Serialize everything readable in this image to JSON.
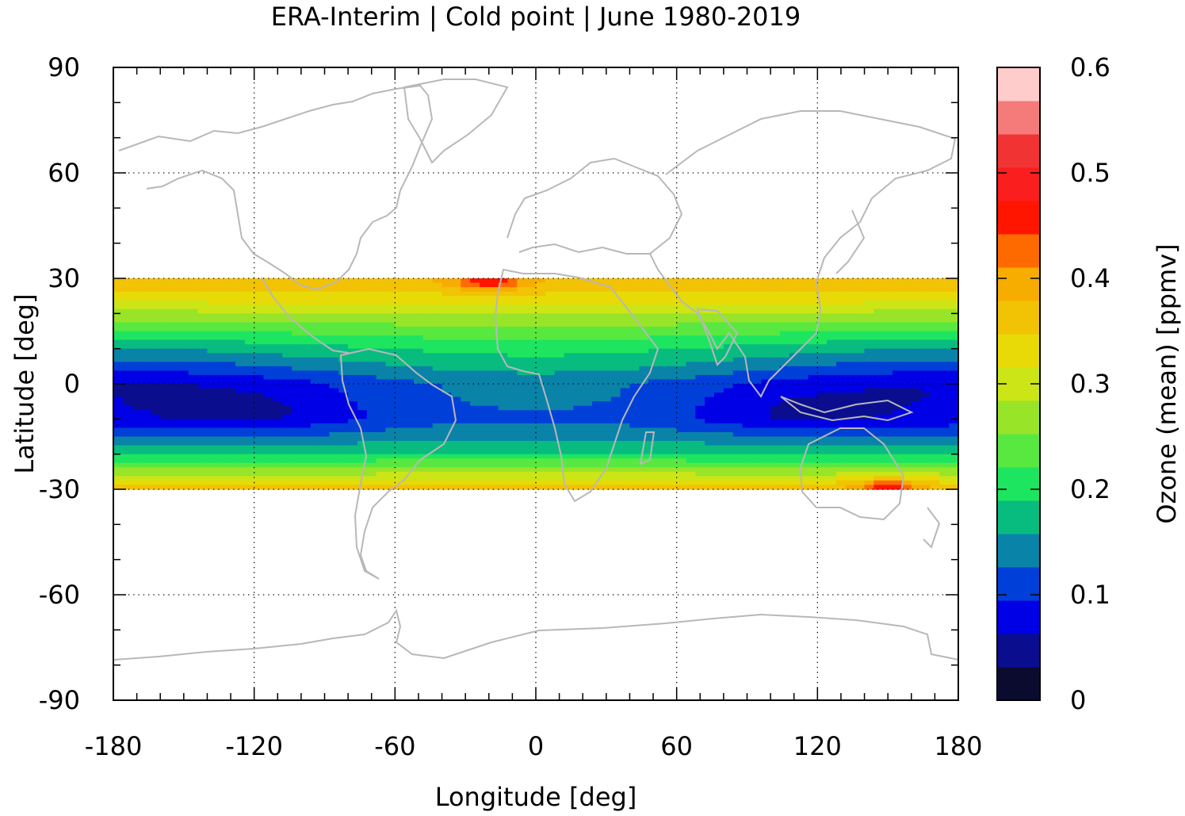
{
  "chart_data": {
    "type": "heatmap",
    "title": "ERA-Interim | Cold point | June 1980-2019",
    "xlabel": "Longitude [deg]",
    "ylabel": "Latitude [deg]",
    "xlim": [
      -180,
      180
    ],
    "ylim": [
      -90,
      90
    ],
    "data_lat_range": [
      -30,
      30
    ],
    "xticks": [
      -180,
      -120,
      -60,
      0,
      60,
      120,
      180
    ],
    "yticks": [
      90,
      60,
      30,
      0,
      -30,
      -60,
      -90
    ],
    "xtick_labels": [
      "-180",
      "-120",
      "-60",
      "0",
      "60",
      "120",
      "180"
    ],
    "ytick_labels": [
      "90",
      "60",
      "30",
      "0",
      "-30",
      "-60",
      "-90"
    ],
    "grid": true,
    "colorbar": {
      "label": "Ozone (mean) [ppmv]",
      "range": [
        0,
        0.6
      ],
      "ticks": [
        0.6,
        0.5,
        0.4,
        0.3,
        0.2,
        0.1,
        0
      ],
      "tick_labels": [
        "0.6",
        "0.5",
        "0.4",
        "0.3",
        "0.2",
        "0.1",
        "0"
      ],
      "colors": [
        "#0b0b30",
        "#0a0e8e",
        "#0000e6",
        "#0040d8",
        "#0a83a8",
        "#08bc80",
        "#1ee560",
        "#59e840",
        "#98e428",
        "#cce516",
        "#e8da06",
        "#f2c205",
        "#f7ad00",
        "#ff6a00",
        "#ff1500",
        "#fa1e1e",
        "#f23333",
        "#f57b7b",
        "#ffcccc"
      ]
    },
    "field": {
      "latitudes": [
        30,
        25,
        20,
        15,
        10,
        5,
        0,
        -5,
        -10,
        -15,
        -20,
        -25,
        -30
      ],
      "longitude_step": 20,
      "zonal_profile": [
        0.38,
        0.34,
        0.28,
        0.23,
        0.18,
        0.14,
        0.1,
        0.1,
        0.1,
        0.14,
        0.19,
        0.27,
        0.38
      ],
      "minimum_centers": [
        {
          "lon": -120,
          "lat": -8,
          "value": 0.1
        },
        {
          "lon": 110,
          "lat": -8,
          "value": 0.1
        }
      ],
      "maximum_centers": [
        {
          "lon": -20,
          "lat": 29,
          "value": 0.45
        },
        {
          "lon": 150,
          "lat": -29,
          "value": 0.45
        }
      ]
    }
  }
}
